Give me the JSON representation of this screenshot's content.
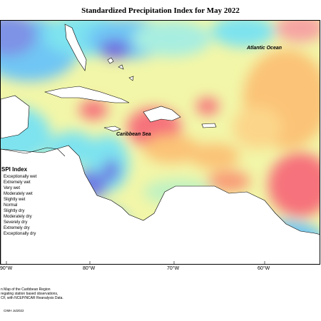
{
  "title": "Standardized Precipitation Index for May 2022",
  "labels": {
    "atlantic": "Atlantic Ocean",
    "caribbean": "Caribbean Sea"
  },
  "legend": {
    "title": "SPI Index",
    "items": [
      {
        "label": "Exceptionally wet",
        "color": "#7a3fd6"
      },
      {
        "label": "Extremely wet",
        "color": "#6f7fe3"
      },
      {
        "label": "Very wet",
        "color": "#62b6f2"
      },
      {
        "label": "Moderately wet",
        "color": "#7fe7f2"
      },
      {
        "label": "Slightly wet",
        "color": "#bff2c2"
      },
      {
        "label": "Normal",
        "color": "#f5f59a"
      },
      {
        "label": "Slightly dry",
        "color": "#f9e07f"
      },
      {
        "label": "Moderately dry",
        "color": "#fbc377"
      },
      {
        "label": "Severely dry",
        "color": "#f99b77"
      },
      {
        "label": "Extremely dry",
        "color": "#f6727b"
      },
      {
        "label": "Exceptionally dry",
        "color": "#ec5c6e"
      }
    ]
  },
  "axis": {
    "ticks": [
      "90°W",
      "80°W",
      "70°W",
      "60°W"
    ]
  },
  "footer": {
    "lines": [
      "n Map of the Caribbean Region",
      "regating station based observations,",
      "CF, with NCEP/NCAR Reanalysis Data."
    ],
    "credit": "CIMH Jul2022"
  }
}
